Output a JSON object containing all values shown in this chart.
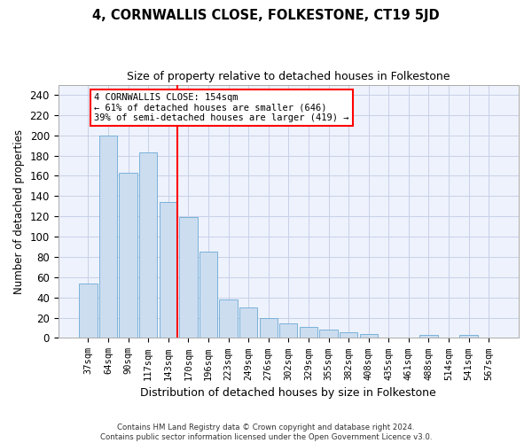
{
  "title": "4, CORNWALLIS CLOSE, FOLKESTONE, CT19 5JD",
  "subtitle": "Size of property relative to detached houses in Folkestone",
  "xlabel": "Distribution of detached houses by size in Folkestone",
  "ylabel": "Number of detached properties",
  "categories": [
    "37sqm",
    "64sqm",
    "90sqm",
    "117sqm",
    "143sqm",
    "170sqm",
    "196sqm",
    "223sqm",
    "249sqm",
    "276sqm",
    "302sqm",
    "329sqm",
    "355sqm",
    "382sqm",
    "408sqm",
    "435sqm",
    "461sqm",
    "488sqm",
    "514sqm",
    "541sqm",
    "567sqm"
  ],
  "values": [
    54,
    200,
    163,
    183,
    134,
    119,
    85,
    38,
    30,
    20,
    14,
    11,
    8,
    6,
    4,
    0,
    0,
    3,
    0,
    3,
    0
  ],
  "bar_color": "#ccddf0",
  "bar_edge_color": "#6aaad4",
  "grid_color": "#c8d0e8",
  "background_color": "#eef2fc",
  "marker_line_index": 4,
  "annotation_title": "4 CORNWALLIS CLOSE: 154sqm",
  "annotation_line1": "← 61% of detached houses are smaller (646)",
  "annotation_line2": "39% of semi-detached houses are larger (419) →",
  "footer_line1": "Contains HM Land Registry data © Crown copyright and database right 2024.",
  "footer_line2": "Contains public sector information licensed under the Open Government Licence v3.0.",
  "ylim": [
    0,
    250
  ],
  "yticks": [
    0,
    20,
    40,
    60,
    80,
    100,
    120,
    140,
    160,
    180,
    200,
    220,
    240
  ]
}
